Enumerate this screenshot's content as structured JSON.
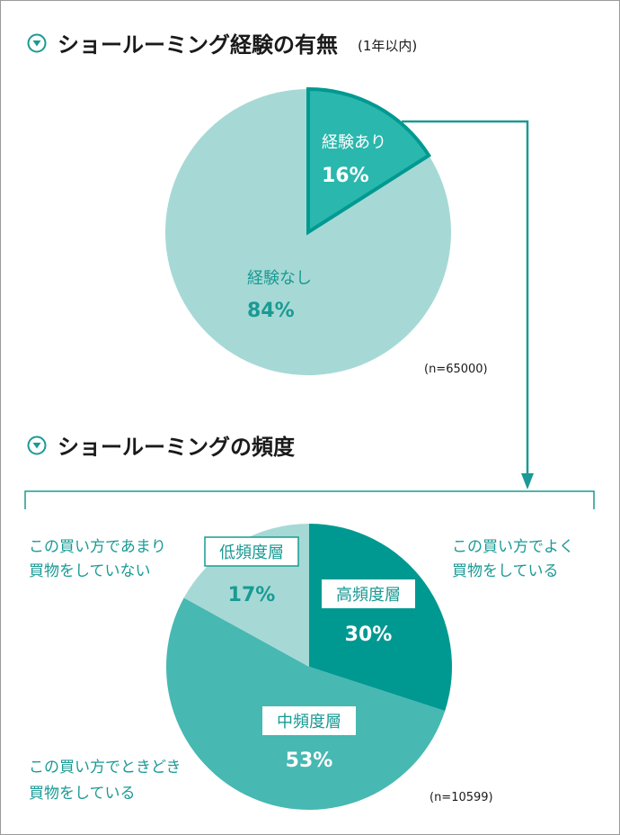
{
  "colors": {
    "accent": "#1a9a94",
    "light": "#a6d9d5",
    "medium": "#47b8b2",
    "dark": "#009991",
    "highlight": "#2ab7ad",
    "white": "#ffffff"
  },
  "chart_data": [
    {
      "type": "pie",
      "title": "ショールーミング経験の有無",
      "subtitle": "(1年以内)",
      "note": "(n=65000)",
      "slices": [
        {
          "label": "経験あり",
          "value": 16,
          "value_label": "16%"
        },
        {
          "label": "経験なし",
          "value": 84,
          "value_label": "84%"
        }
      ]
    },
    {
      "type": "pie",
      "title": "ショールーミングの頻度",
      "note": "(n=10599)",
      "slices": [
        {
          "label": "高頻度層",
          "value": 30,
          "value_label": "30%",
          "description_lines": [
            "この買い方でよく",
            "買物をしている"
          ]
        },
        {
          "label": "中頻度層",
          "value": 53,
          "value_label": "53%",
          "description_lines": [
            "この買い方でときどき",
            "買物をしている"
          ]
        },
        {
          "label": "低頻度層",
          "value": 17,
          "value_label": "17%",
          "description_lines": [
            "この買い方であまり",
            "買物をしていない"
          ]
        }
      ]
    }
  ]
}
